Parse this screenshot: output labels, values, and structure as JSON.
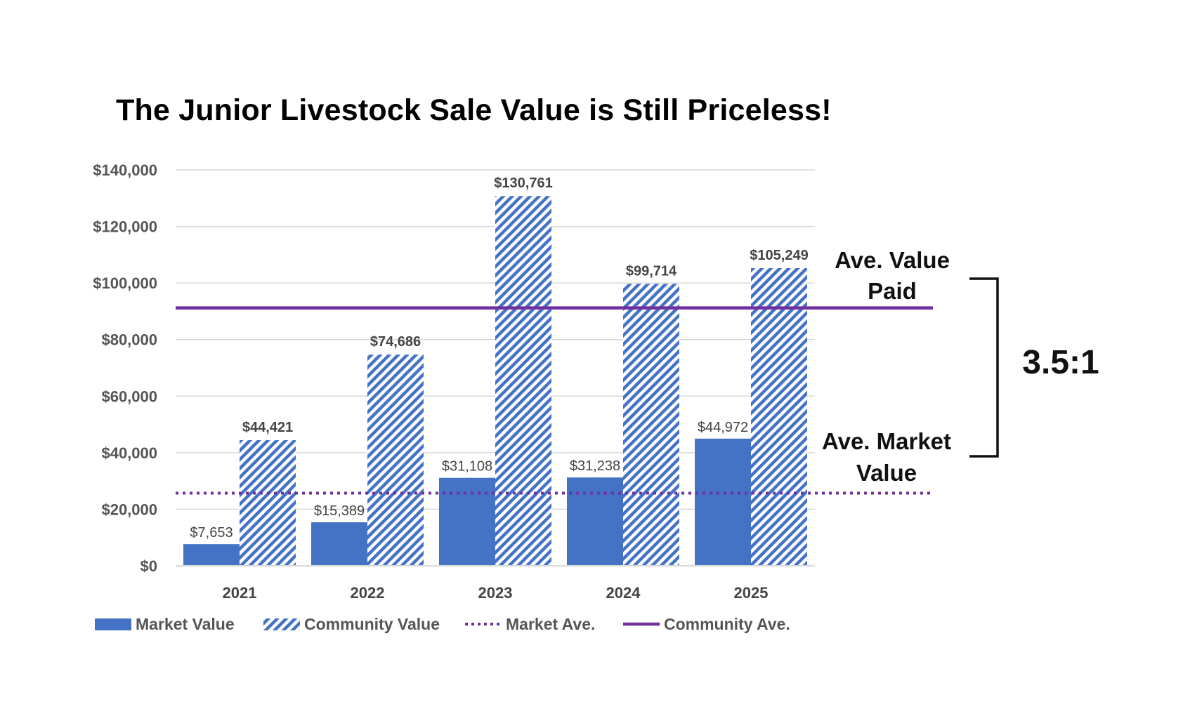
{
  "chart_data": {
    "type": "bar",
    "title": "The Junior Livestock Sale Value is Still Priceless!",
    "categories": [
      "2021",
      "2022",
      "2023",
      "2024",
      "2025"
    ],
    "series": [
      {
        "name": "Market Value",
        "values": [
          7653,
          15389,
          31108,
          31238,
          44972
        ],
        "labels": [
          "$7,653",
          "$15,389",
          "$31,108",
          "$31,238",
          "$44,972"
        ],
        "style": "solid",
        "color": "#4472C4"
      },
      {
        "name": "Community Value",
        "values": [
          44421,
          74686,
          130761,
          99714,
          105249
        ],
        "labels": [
          "$44,421",
          "$74,686",
          "$130,761",
          "$99,714",
          "$105,249"
        ],
        "style": "hatched",
        "color": "#4472C4"
      }
    ],
    "lines": [
      {
        "name": "Market Ave.",
        "value": 25700,
        "style": "dotted",
        "color": "#7030A0"
      },
      {
        "name": "Community Ave.",
        "value": 91200,
        "style": "solid",
        "color": "#7030A0"
      }
    ],
    "ylim": [
      0,
      140000
    ],
    "yticks": [
      0,
      20000,
      40000,
      60000,
      80000,
      100000,
      120000,
      140000
    ],
    "ytick_labels": [
      "$0",
      "$20,000",
      "$40,000",
      "$60,000",
      "$80,000",
      "$100,000",
      "$120,000",
      "$140,000"
    ],
    "grid": true,
    "legend_position": "bottom",
    "annotations": {
      "value_paid": [
        "Ave. Value",
        "Paid"
      ],
      "market_value": [
        "Ave. Market",
        "Value"
      ],
      "ratio": "3.5:1"
    }
  }
}
